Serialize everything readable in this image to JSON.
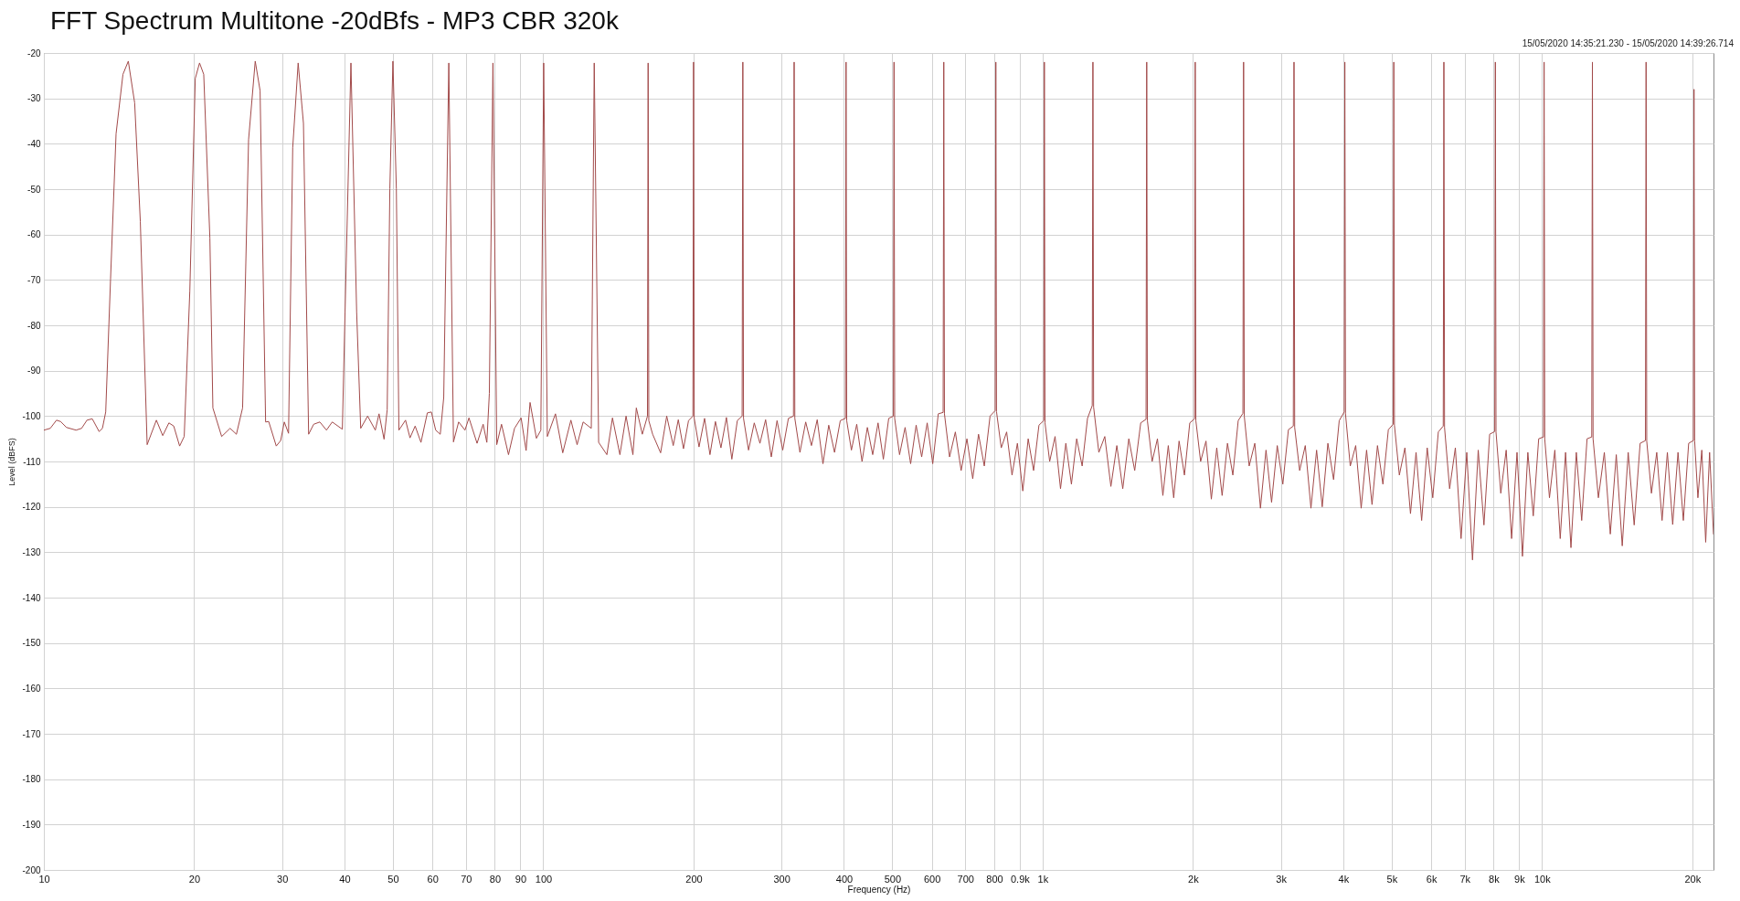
{
  "chart_data": {
    "type": "line",
    "title": "FFT Spectrum Multitone -20dBfs - MP3 CBR 320k",
    "subtitle": "15/05/2020 14:35:21.230 - 15/05/2020 14:39:26.714",
    "xlabel": "Frequency (Hz)",
    "ylabel": "Level (dBFS)",
    "x": [
      10,
      10.3,
      10.6,
      10.8,
      11.1,
      11.6,
      11.9,
      12.2,
      12.5,
      12.9,
      13.1,
      13.3,
      13.6,
      13.95,
      14.4,
      14.76,
      15.2,
      15.6,
      16.1,
      16.8,
      17.3,
      17.8,
      18.2,
      18.7,
      19.1,
      19.6,
      20.1,
      20.5,
      20.9,
      21.5,
      21.8,
      22.7,
      23.6,
      24.3,
      25,
      25.7,
      26.5,
      27.1,
      27.8,
      28.2,
      29.2,
      29.8,
      30.3,
      30.9,
      31.5,
      32.3,
      33.1,
      33.9,
      34.7,
      35.7,
      36.8,
      37.8,
      39.6,
      40.1,
      41.2,
      42.3,
      43.1,
      44.5,
      46.1,
      46.9,
      48,
      48.7,
      49.3,
      50,
      50.8,
      51.4,
      53,
      54.1,
      55.4,
      56.9,
      58.6,
      59.7,
      60.9,
      62.2,
      63.2,
      64.7,
      66.1,
      67.7,
      69.7,
      71,
      73.7,
      75.8,
      77.1,
      78,
      79.3,
      80.7,
      82.5,
      85.2,
      87.6,
      90.3,
      92.4,
      94.1,
      96.9,
      98.9,
      100.2,
      101.9,
      105.8,
      109.4,
      113.6,
      116.9,
      120.2,
      124.8,
      126.5,
      129.1,
      134.1,
      137.6,
      142.4,
      146.5,
      151.2,
      153.6,
      157.9,
      161.7,
      162.2,
      162.7,
      165.6,
      171.8,
      176.7,
      182.1,
      186.4,
      190.9,
      195.4,
      199.4,
      200,
      200.6,
      205.1,
      210.4,
      215.7,
      221.2,
      226.9,
      232.7,
      238.6,
      244.7,
      250.2,
      251,
      251.8,
      257.7,
      264.6,
      271.6,
      278.8,
      286.2,
      293.9,
      301.7,
      309.7,
      317,
      318,
      319,
      326.6,
      335.4,
      344.4,
      353.7,
      363.2,
      373,
      383.1,
      393.4,
      402.8,
      404,
      405.2,
      414.1,
      424.4,
      434.9,
      445.7,
      456.8,
      468.2,
      479.8,
      491.8,
      502.5,
      504,
      505.5,
      517,
      530.4,
      544.1,
      558.1,
      572.5,
      587.3,
      602.5,
      618.1,
      632.1,
      634,
      635.9,
      651.1,
      668.7,
      686.8,
      705.4,
      724.5,
      744.1,
      764.2,
      784.8,
      803.6,
      806,
      808.4,
      826.3,
      847.1,
      868.4,
      890.2,
      912.6,
      935.6,
      959.1,
      983.2,
      1005,
      1008,
      1011,
      1033,
      1059,
      1086,
      1113,
      1142,
      1170,
      1200,
      1230,
      1257,
      1261,
      1265,
      1296,
      1332,
      1370,
      1408,
      1447,
      1488,
      1529,
      1572,
      1611,
      1616,
      1621,
      1657,
      1698,
      1741,
      1785,
      1830,
      1876,
      1923,
      1971,
      2015,
      2021,
      2027,
      2072,
      2124,
      2177,
      2232,
      2288,
      2345,
      2404,
      2464,
      2518,
      2526,
      2534,
      2592,
      2660,
      2730,
      2801,
      2874,
      2950,
      3027,
      3106,
      3177,
      3187,
      3197,
      3271,
      3357,
      3446,
      3537,
      3630,
      3726,
      3825,
      3926,
      4017,
      4029,
      4041,
      4131,
      4236,
      4344,
      4454,
      4567,
      4683,
      4802,
      4924,
      5034,
      5049,
      5064,
      5180,
      5315,
      5453,
      5595,
      5741,
      5890,
      6043,
      6200,
      6342,
      6361,
      6380,
      6531,
      6706,
      6885,
      7069,
      7258,
      7452,
      7651,
      7856,
      8041,
      8065,
      8089,
      8269,
      8478,
      8692,
      8912,
      9138,
      9368,
      9605,
      9848,
      10067,
      10097,
      10127,
      10350,
      10610,
      10876,
      11148,
      11428,
      11714,
      12008,
      12309,
      12579,
      12617,
      12655,
      12969,
      13330,
      13702,
      14084,
      14477,
      14880,
      15296,
      15722,
      16112,
      16160,
      16208,
      16562,
      16973,
      17395,
      17826,
      18269,
      18723,
      19188,
      19665,
      20095,
      20155,
      20215,
      20520,
      20893,
      21271,
      21657,
      22050
    ],
    "series": [
      {
        "color": "#a24a4a",
        "values": [
          -103.1,
          -102.7,
          -100.9,
          -101.2,
          -102.5,
          -103.1,
          -102.7,
          -100.9,
          -100.6,
          -103.4,
          -102.7,
          -99.1,
          -69.8,
          -37.8,
          -24.7,
          -21.8,
          -31,
          -57.1,
          -106.3,
          -100.9,
          -104.3,
          -101.5,
          -102.2,
          -106.6,
          -104.5,
          -72.5,
          -25.6,
          -22.2,
          -24.7,
          -60.8,
          -98.2,
          -104.5,
          -102.7,
          -104,
          -98.2,
          -39.1,
          -21.8,
          -28.3,
          -101.3,
          -101.2,
          -106.6,
          -105.4,
          -101.3,
          -103.8,
          -40.9,
          -22.2,
          -35.5,
          -104,
          -101.8,
          -101.3,
          -103.1,
          -101.3,
          -102.9,
          -77,
          -22.2,
          -77,
          -102.7,
          -100,
          -103.1,
          -99.5,
          -105.1,
          -98.6,
          -49.9,
          -21.8,
          -49.9,
          -103.1,
          -100.9,
          -104.8,
          -102.2,
          -105.8,
          -99.3,
          -99.1,
          -103.1,
          -104,
          -95.9,
          -22.2,
          -105.7,
          -101.3,
          -103.1,
          -100.4,
          -106,
          -101.8,
          -105.8,
          -95,
          -22.2,
          -106.3,
          -101.8,
          -108.5,
          -102.7,
          -100.4,
          -107.6,
          -97,
          -104.9,
          -103.1,
          -22.2,
          -104.5,
          -99.5,
          -108.1,
          -100.9,
          -106.3,
          -101.3,
          -102.7,
          -22.2,
          -105.8,
          -108.5,
          -100.4,
          -108.5,
          -100,
          -108.5,
          -98.2,
          -104,
          -100,
          -22.2,
          -101,
          -104,
          -108.1,
          -100,
          -106.5,
          -100.8,
          -107.2,
          -101,
          -100,
          -22,
          -100.5,
          -106.8,
          -100.5,
          -108.5,
          -101.2,
          -107,
          -100.3,
          -109.5,
          -101,
          -100,
          -22,
          -100.5,
          -107.5,
          -101.5,
          -106,
          -100.8,
          -109,
          -101,
          -107.5,
          -100.5,
          -100,
          -22,
          -100.5,
          -108,
          -101.3,
          -106.5,
          -100.8,
          -110.5,
          -102,
          -108,
          -101,
          -100.5,
          -22,
          -101,
          -107.5,
          -101.8,
          -110,
          -102.5,
          -108.5,
          -101.5,
          -109.5,
          -100.5,
          -100,
          -22,
          -100.5,
          -108.5,
          -102.5,
          -110.5,
          -102,
          -109,
          -101.5,
          -110.5,
          -99.5,
          -99.2,
          -22,
          -99.5,
          -109,
          -103.5,
          -112,
          -105,
          -113.8,
          -104,
          -111,
          -100,
          -98.8,
          -22,
          -99,
          -107,
          -103.5,
          -113,
          -106,
          -116.5,
          -105,
          -112,
          -102,
          -101,
          -22,
          -101.5,
          -110,
          -104.5,
          -116,
          -106,
          -115,
          -105,
          -111,
          -100.5,
          -97.7,
          -22,
          -98,
          -108,
          -104.5,
          -115.5,
          -106.5,
          -116,
          -105,
          -112,
          -101.5,
          -100.7,
          -22,
          -101,
          -110,
          -105,
          -117.5,
          -106.5,
          -118,
          -105.5,
          -113,
          -101.5,
          -100.6,
          -22,
          -101,
          -110,
          -105.5,
          -118.3,
          -107,
          -117.5,
          -106,
          -113,
          -101,
          -99.4,
          -22,
          -100,
          -111,
          -106,
          -120.3,
          -107.5,
          -119,
          -106.5,
          -115,
          -103,
          -102.2,
          -22,
          -102.5,
          -112,
          -106.5,
          -120.3,
          -107.5,
          -120,
          -106,
          -114,
          -101,
          -99.1,
          -22,
          -99.5,
          -111,
          -106.5,
          -120.3,
          -107.5,
          -119.5,
          -106.5,
          -115,
          -103,
          -101.8,
          -22,
          -102,
          -113,
          -107,
          -121.5,
          -108,
          -123,
          -107,
          -118,
          -103.5,
          -102.2,
          -22,
          -102.5,
          -116,
          -107,
          -127,
          -108,
          -131.7,
          -107.5,
          -124,
          -104,
          -103.4,
          -22,
          -103.5,
          -117,
          -107.5,
          -127,
          -108,
          -130.9,
          -108,
          -122,
          -105,
          -104.6,
          -22,
          -105,
          -118,
          -107.5,
          -127,
          -108,
          -129,
          -108,
          -123,
          -105,
          -104.6,
          -22,
          -105,
          -118,
          -108,
          -126,
          -108.5,
          -128.6,
          -108,
          -124,
          -106,
          -105.4,
          -22,
          -105.5,
          -117,
          -108,
          -123,
          -108,
          -123.9,
          -108,
          -123,
          -106,
          -105.4,
          -28,
          -105.5,
          -118,
          -107.5,
          -127.8,
          -108,
          -126
        ]
      }
    ],
    "xlim": [
      10,
      22050
    ],
    "ylim": [
      -200,
      -20
    ],
    "xticks": [
      10,
      20,
      30,
      40,
      50,
      60,
      70,
      80,
      90,
      100,
      200,
      300,
      400,
      500,
      600,
      700,
      800,
      {
        "value": 900,
        "label": "0.9k"
      },
      {
        "value": 1000,
        "label": "1k"
      },
      {
        "value": 2000,
        "label": "2k"
      },
      {
        "value": 3000,
        "label": "3k"
      },
      {
        "value": 4000,
        "label": "4k"
      },
      {
        "value": 5000,
        "label": "5k"
      },
      {
        "value": 6000,
        "label": "6k"
      },
      {
        "value": 7000,
        "label": "7k"
      },
      {
        "value": 8000,
        "label": "8k"
      },
      {
        "value": 9000,
        "label": "9k"
      },
      {
        "value": 10000,
        "label": "10k"
      },
      {
        "value": 20000,
        "label": "20k"
      }
    ],
    "yticks": [
      -20,
      -30,
      -40,
      -50,
      -60,
      -70,
      -80,
      -90,
      -100,
      -110,
      -120,
      -130,
      -140,
      -150,
      -160,
      -170,
      -180,
      -190,
      -200
    ],
    "log": "x",
    "grid": true
  }
}
